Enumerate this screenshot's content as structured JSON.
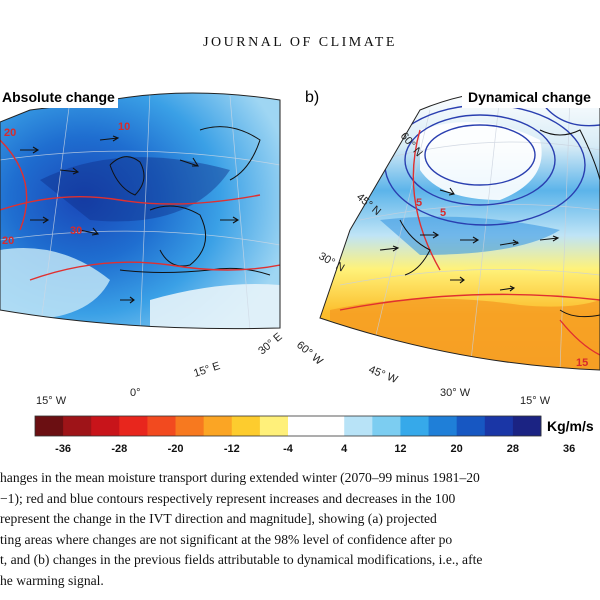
{
  "header": {
    "journal": "JOURNAL OF CLIMATE"
  },
  "panels": {
    "a": {
      "title": "Absolute change",
      "lon_labels": [
        "15° W",
        "0°",
        "15° E",
        "30° E"
      ]
    },
    "b": {
      "letter": "b)",
      "title": "Dynamical change",
      "lat_labels": [
        "60° N",
        "45° N",
        "30° N"
      ],
      "lon_labels": [
        "60° W",
        "45° W",
        "30° W",
        "15° W"
      ]
    }
  },
  "contour_labels_a": [
    "20",
    "10",
    "30",
    "20",
    "70"
  ],
  "contour_labels_b": [
    "5",
    "5",
    "15"
  ],
  "colorbar": {
    "colors": [
      "#6b0f12",
      "#9e1418",
      "#c8141a",
      "#e8261d",
      "#f24a1f",
      "#f7791f",
      "#fba524",
      "#fdcc2e",
      "#fff07a",
      "#ffffff",
      "#ffffff",
      "#b8e3f7",
      "#7ccdf1",
      "#36a9ea",
      "#1f7fd8",
      "#1757c2",
      "#1a36a6",
      "#1b2383"
    ],
    "tick_labels": [
      "-36",
      "-28",
      "-20",
      "-12",
      "-4",
      "4",
      "12",
      "20",
      "28",
      "36"
    ],
    "units": "Kg/m/s"
  },
  "caption": {
    "lines": [
      "hanges in the mean moisture transport during extended winter (2070–99 minus 1981–20",
      "−1); red and blue contours respectively represent increases and decreases in the 100",
      "represent the change in the IVT direction and magnitude], showing (a) projected",
      "ting areas where changes are not significant at the 98% level of confidence after po",
      "t, and (b) changes in the previous fields attributable to dynamical modifications, i.e., afte",
      "he warming signal."
    ]
  }
}
